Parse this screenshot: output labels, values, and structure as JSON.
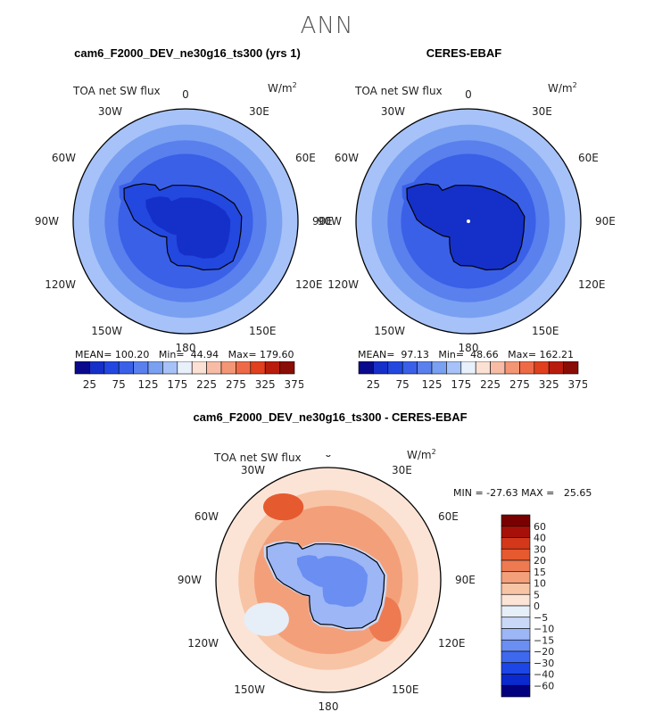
{
  "season": "ANN",
  "colors": {
    "abs_scale": [
      "#0a0a8c",
      "#1530c8",
      "#2248e0",
      "#3a60e8",
      "#5a80ee",
      "#7aa0f2",
      "#a6c2f8",
      "#e8f0fb",
      "#fbe0d4",
      "#f8bca6",
      "#f39676",
      "#ee6a46",
      "#e0401e",
      "#b81c0c",
      "#8a0c06"
    ],
    "diff_scale": [
      "#020280",
      "#0a2ad0",
      "#1c46e6",
      "#3e68ee",
      "#6a8ef2",
      "#9cb6f6",
      "#cad8f8",
      "#e6eef8",
      "#fbe4d6",
      "#f8c4a6",
      "#f3a07a",
      "#ee7a52",
      "#e65a30",
      "#d4381a",
      "#a61008",
      "#780000"
    ]
  },
  "panels": [
    {
      "title": "cam6_F2000_DEV_ne30g16_ts300 (yrs 1)",
      "var_label": "TOA net SW flux",
      "units_label": "W/m",
      "units_sup": "2",
      "stats": "MEAN= 100.20   Min=  44.94   Max= 179.60",
      "colorbar_labels": [
        "25",
        "75",
        "125",
        "175",
        "225",
        "275",
        "325",
        "375"
      ]
    },
    {
      "title": "CERES-EBAF",
      "var_label": "TOA net SW flux",
      "units_label": "W/m",
      "units_sup": "2",
      "stats": "MEAN=  97.13   Min=  48.66   Max= 162.21",
      "colorbar_labels": [
        "25",
        "75",
        "125",
        "175",
        "225",
        "275",
        "325",
        "375"
      ]
    }
  ],
  "diff_panel": {
    "title": "cam6_F2000_DEV_ne30g16_ts300 - CERES-EBAF",
    "var_label": "TOA net SW flux",
    "units_label": "W/m",
    "units_sup": "2",
    "stats": "MIN = -27.63 MAX =   25.65",
    "colorbar_labels": [
      "60",
      "40",
      "30",
      "20",
      "15",
      "10",
      "5",
      "0",
      "−5",
      "−10",
      "−15",
      "−20",
      "−30",
      "−40",
      "−60"
    ]
  },
  "lon_labels": [
    "0",
    "30E",
    "60E",
    "90E",
    "120E",
    "150E",
    "180",
    "150W",
    "120W",
    "90W",
    "60W",
    "30W"
  ]
}
